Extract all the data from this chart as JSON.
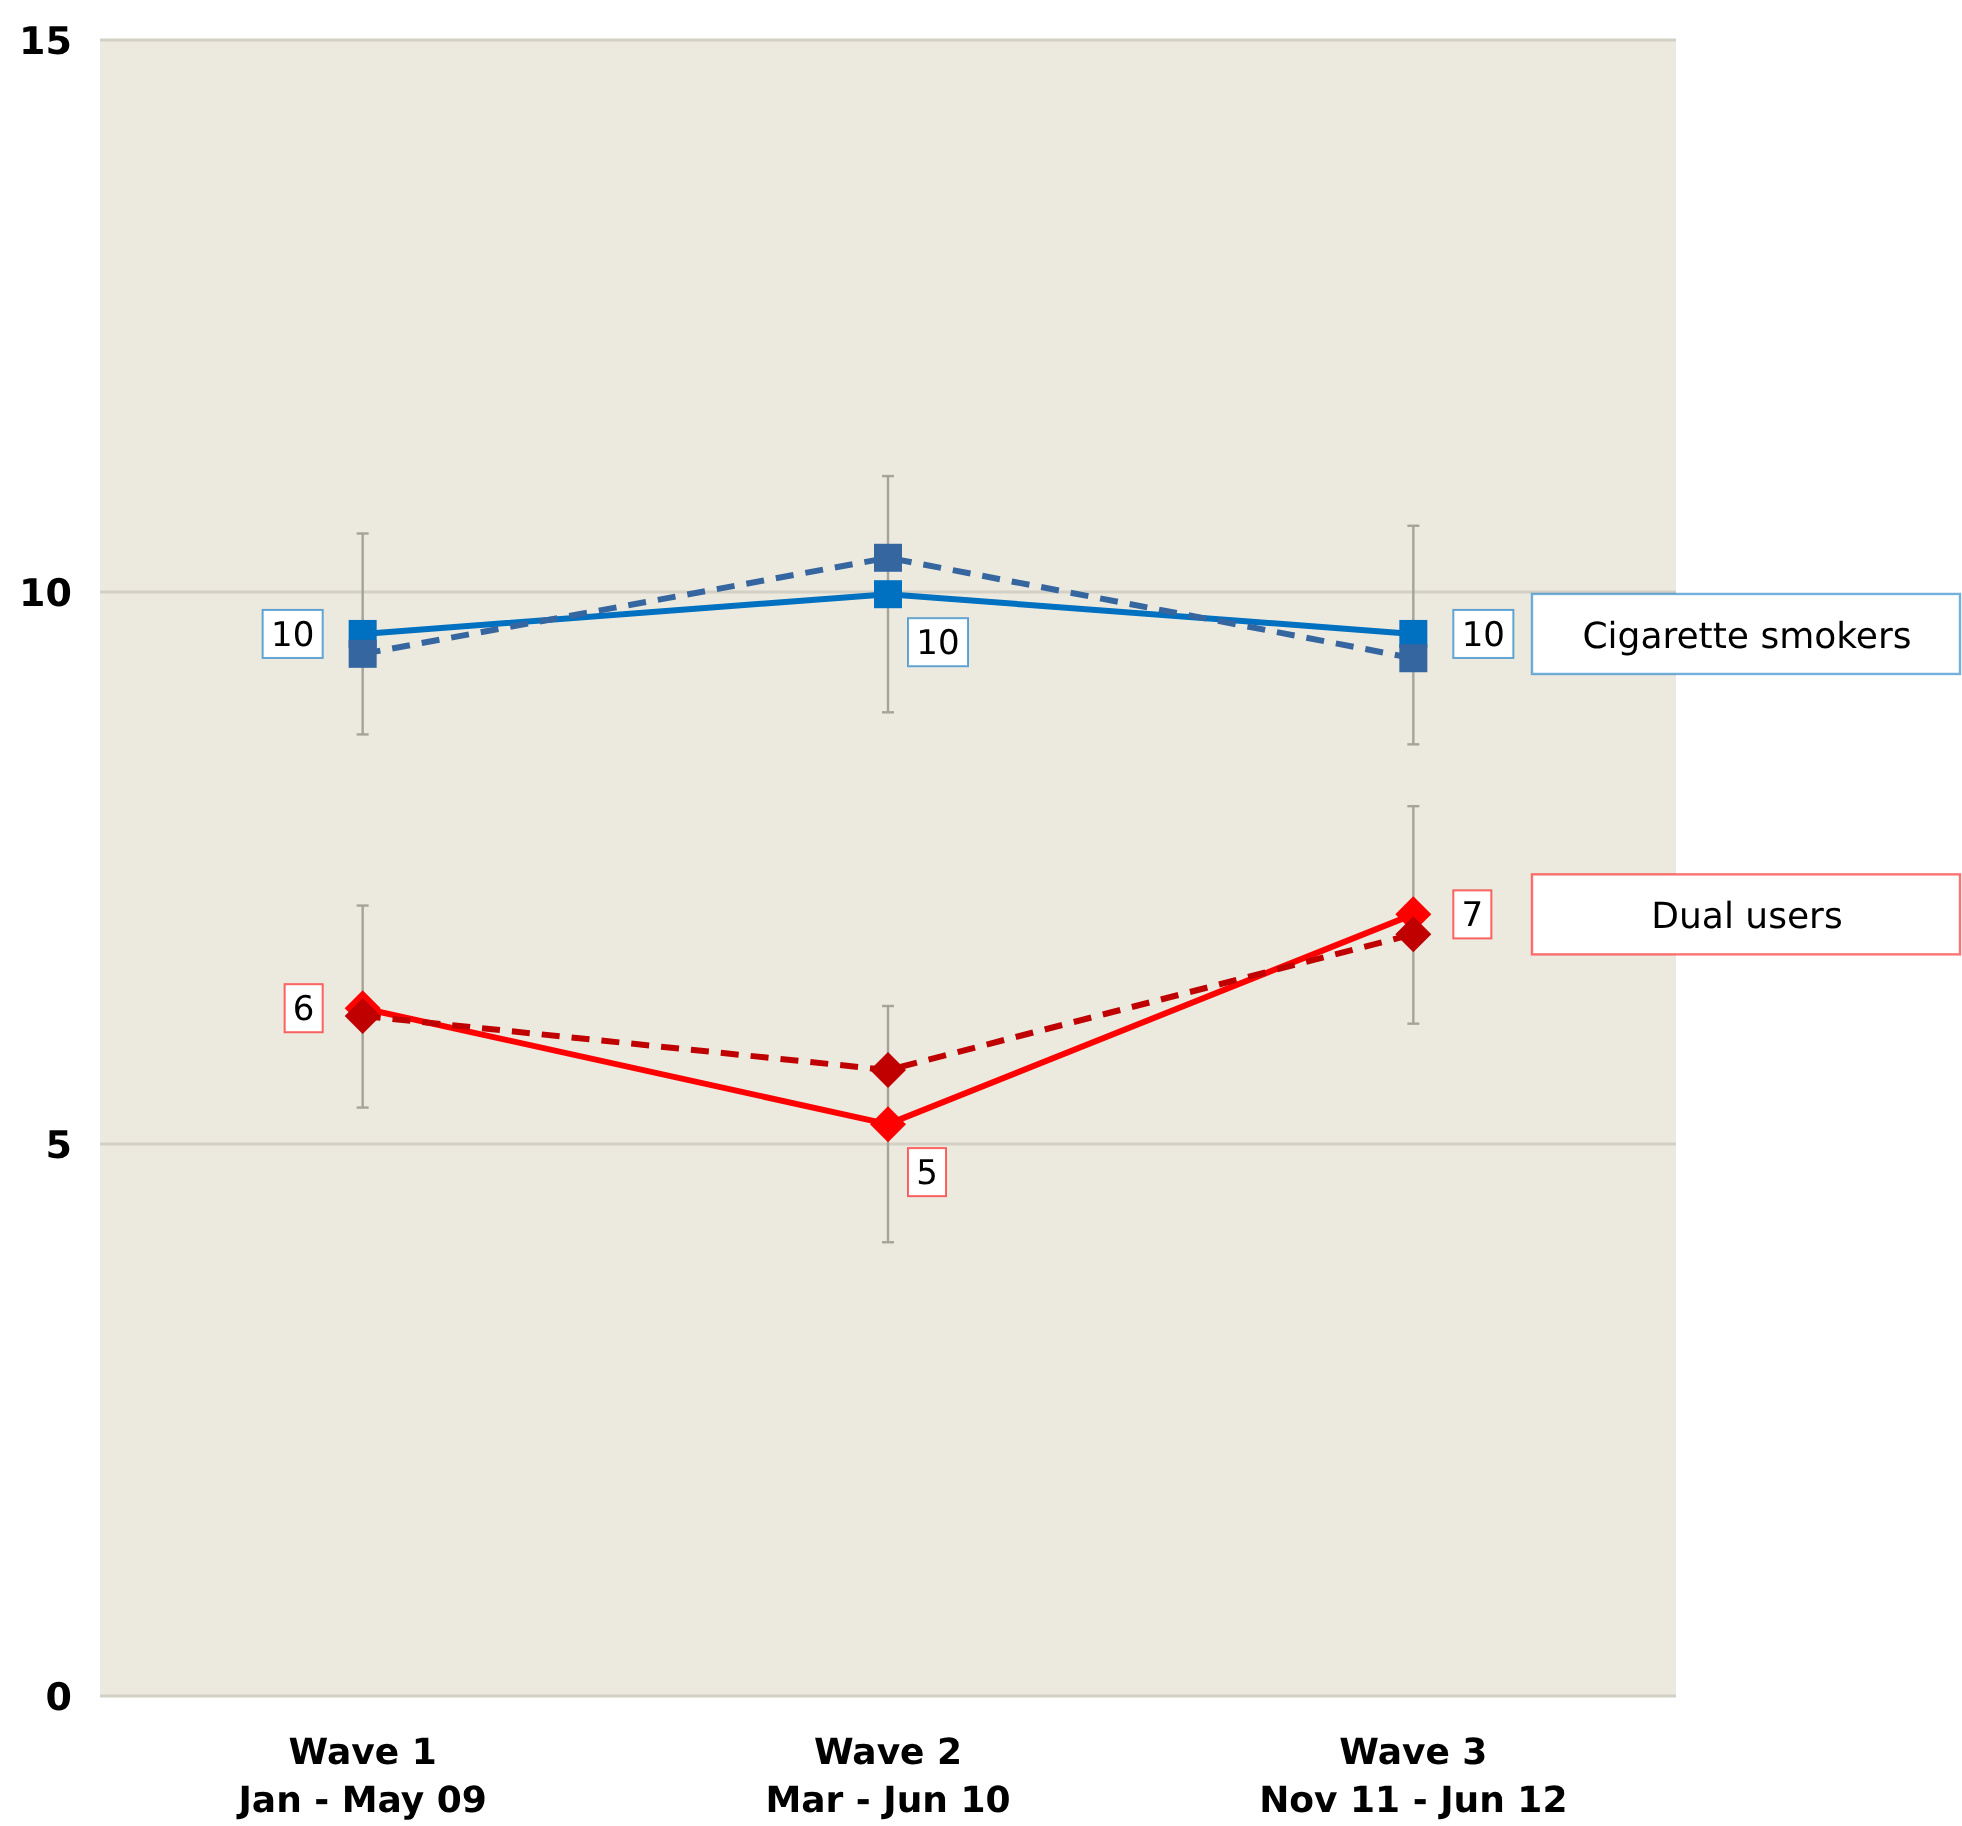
{
  "chart_data": {
    "type": "line",
    "categories": [
      "Wave 1\nJan - May 09",
      "Wave 2\nMar - Jun 10",
      "Wave 3\nNov 11 - Jun 12"
    ],
    "ylim": [
      0,
      15
    ],
    "yticks": [
      0,
      5,
      10,
      15
    ],
    "grid": "y",
    "legend": "right",
    "series": [
      {
        "name": "Cigarette smokers",
        "color": "#0070c0",
        "marker": "square",
        "line_style": "solid",
        "values": [
          9.62,
          9.98,
          9.62
        ],
        "errors": [
          [
            8.71,
            10.53
          ],
          [
            8.91,
            11.05
          ],
          [
            8.62,
            10.6
          ]
        ],
        "value_labels": [
          "10",
          "10",
          "10"
        ]
      },
      {
        "color": "#3566a0",
        "marker": "square",
        "line_style": "dashed",
        "values": [
          9.44,
          10.31,
          9.4
        ]
      },
      {
        "name": "Dual users",
        "color": "#ff0000",
        "marker": "diamond",
        "line_style": "solid",
        "values": [
          6.23,
          5.18,
          7.08
        ],
        "errors": [
          [
            5.33,
            7.16
          ],
          [
            4.11,
            6.25
          ],
          [
            6.09,
            8.06
          ]
        ],
        "value_labels": [
          "6",
          "5",
          "7"
        ]
      },
      {
        "color": "#c00000",
        "marker": "diamond",
        "line_style": "dashed",
        "values": [
          6.16,
          5.67,
          6.9
        ]
      }
    ]
  }
}
